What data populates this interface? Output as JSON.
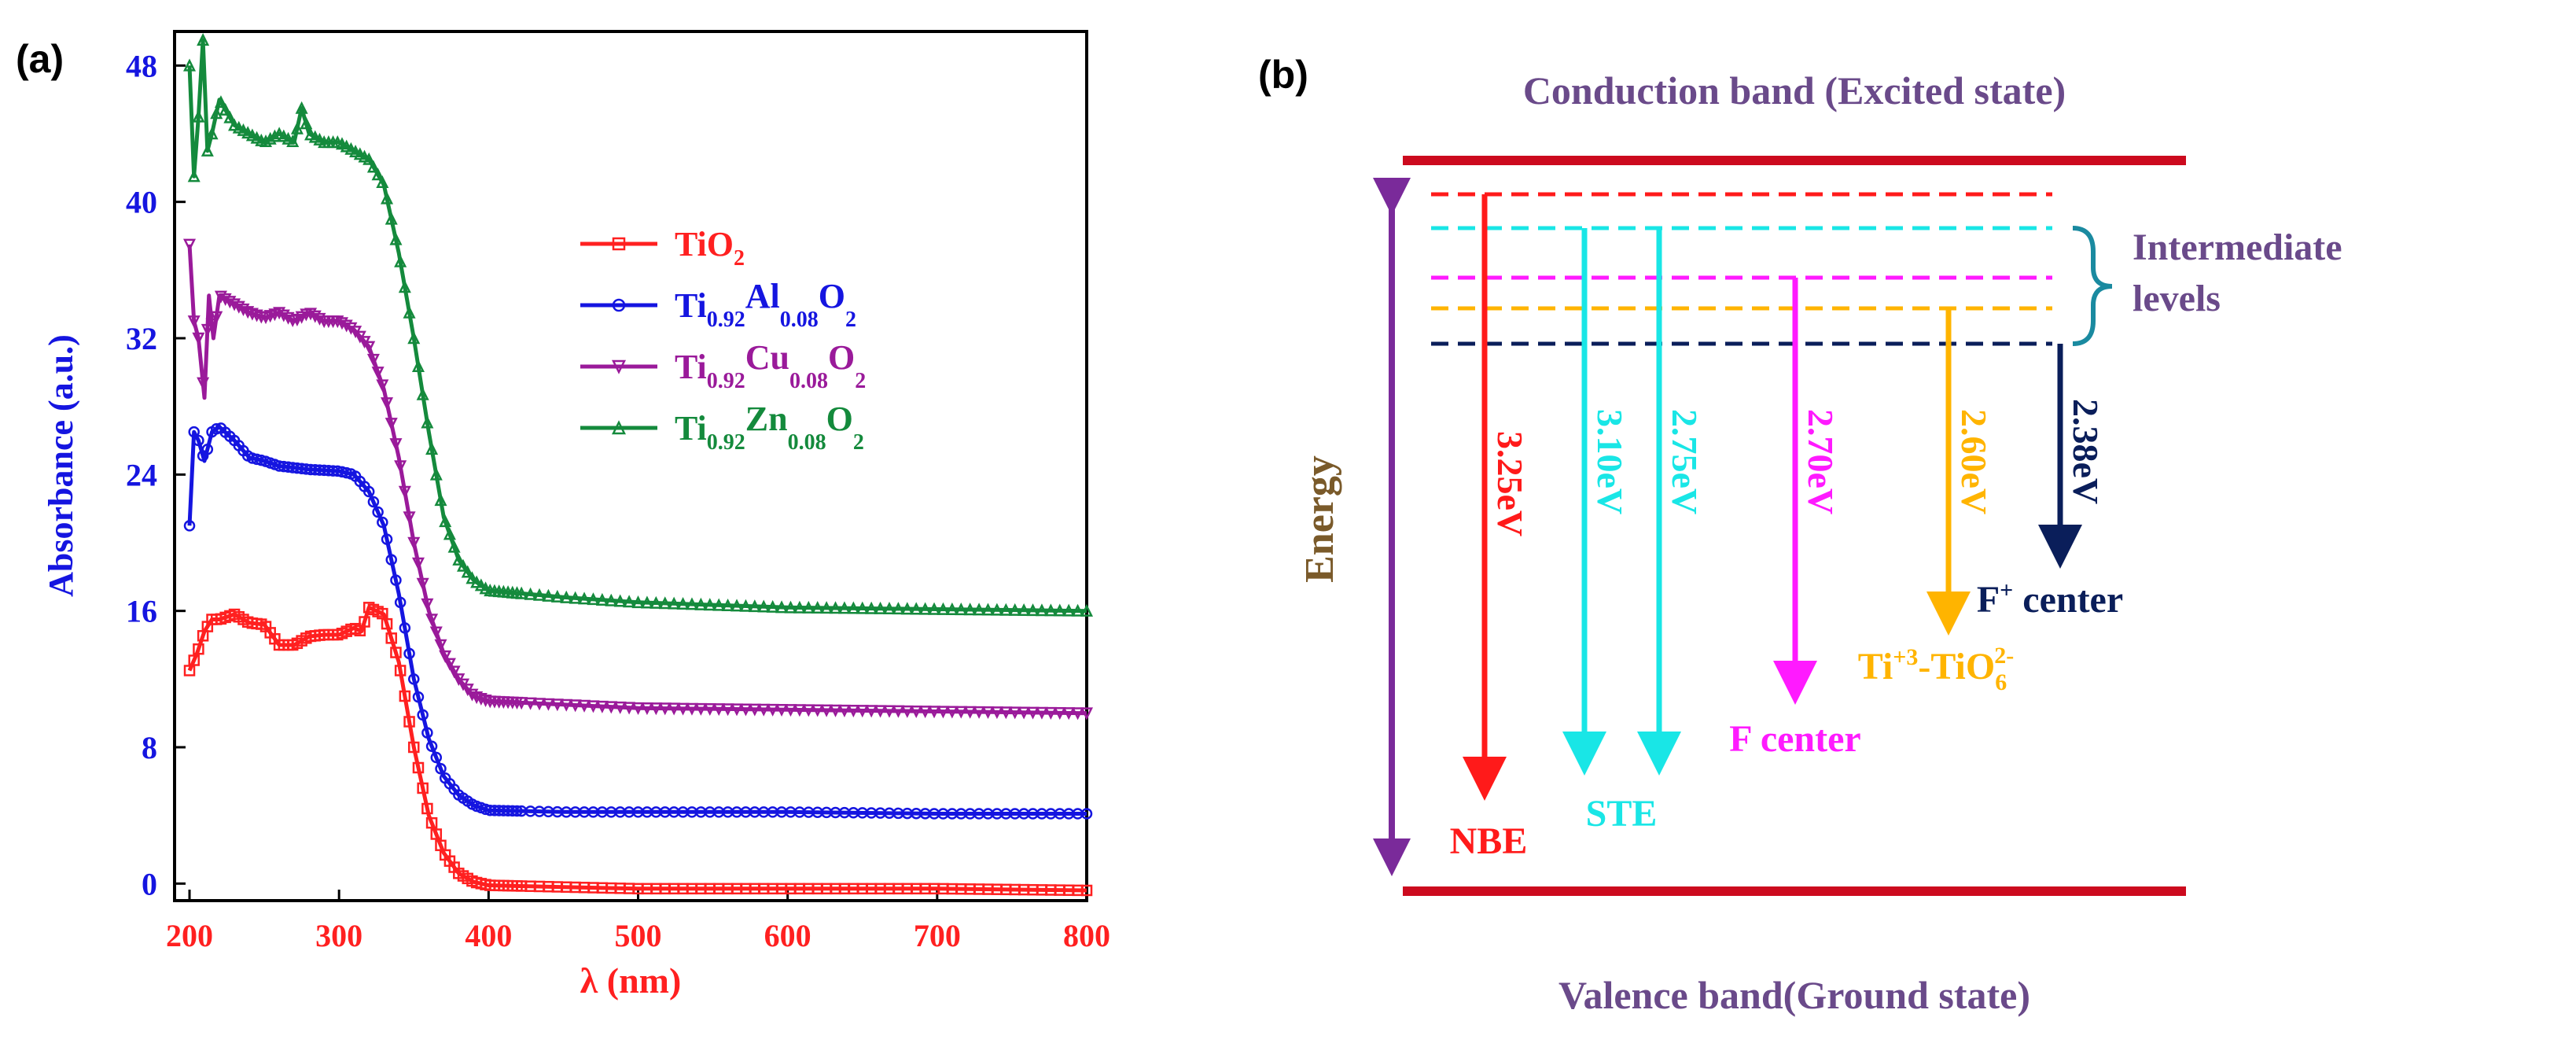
{
  "colors": {
    "tio2": "#ff2020",
    "al": "#1515e0",
    "cu": "#9a1a9a",
    "zn": "#148a3c",
    "axis_x_text": "#ff2020",
    "axis_y_text": "#1515e0",
    "band": "#cc0a1e",
    "energy_arrow": "#7a2a9a",
    "title_text": "#6a4a8a",
    "nbe": "#ff1a1a",
    "ste": "#19e6e6",
    "fcenter": "#ff1aff",
    "ti3": "#ffb400",
    "fplus": "#0a1e5a",
    "bracket": "#1a8aa0",
    "energy_label": "#7a5a2a"
  },
  "chart_data": [
    {
      "panel": "(a)",
      "type": "line",
      "xlabel_symbol": "λ",
      "xlabel_unit": " (nm)",
      "ylabel": "Absorbance (a.u.)",
      "xlim": [
        190,
        800
      ],
      "ylim": [
        -1,
        50
      ],
      "x_ticks": [
        200,
        300,
        400,
        500,
        600,
        700,
        800
      ],
      "y_ticks": [
        0,
        8,
        16,
        24,
        32,
        40,
        48
      ],
      "legend_position": "upper-right",
      "series": [
        {
          "name": "TiO2",
          "legend": {
            "base": "TiO",
            "sub1": "2",
            "mid": "",
            "sub2": "",
            "end": "",
            "sub3": ""
          },
          "color_key": "tio2",
          "marker": "square",
          "points": [
            [
              200,
              12.5
            ],
            [
              205,
              13.5
            ],
            [
              210,
              14.8
            ],
            [
              215,
              15.5
            ],
            [
              220,
              15.5
            ],
            [
              230,
              15.8
            ],
            [
              240,
              15.3
            ],
            [
              250,
              15.2
            ],
            [
              260,
              14.0
            ],
            [
              270,
              14.0
            ],
            [
              280,
              14.5
            ],
            [
              290,
              14.6
            ],
            [
              300,
              14.6
            ],
            [
              310,
              15.0
            ],
            [
              315,
              14.8
            ],
            [
              320,
              16.2
            ],
            [
              330,
              15.8
            ],
            [
              340,
              13.0
            ],
            [
              350,
              8.0
            ],
            [
              360,
              4.0
            ],
            [
              370,
              1.8
            ],
            [
              380,
              0.6
            ],
            [
              390,
              0.1
            ],
            [
              400,
              -0.1
            ],
            [
              450,
              -0.2
            ],
            [
              500,
              -0.3
            ],
            [
              600,
              -0.3
            ],
            [
              700,
              -0.3
            ],
            [
              800,
              -0.4
            ]
          ]
        },
        {
          "name": "Ti0.92Al0.08O2",
          "legend": {
            "base": "Ti",
            "sub1": "0.92",
            "mid": "Al",
            "sub2": "0.08",
            "end": "O",
            "sub3": "2"
          },
          "color_key": "al",
          "marker": "circle",
          "points": [
            [
              200,
              21.0
            ],
            [
              203,
              26.5
            ],
            [
              206,
              26.0
            ],
            [
              210,
              24.8
            ],
            [
              215,
              26.5
            ],
            [
              220,
              26.8
            ],
            [
              230,
              26.0
            ],
            [
              240,
              25.0
            ],
            [
              250,
              24.8
            ],
            [
              260,
              24.5
            ],
            [
              280,
              24.3
            ],
            [
              300,
              24.2
            ],
            [
              310,
              24.0
            ],
            [
              320,
              23.0
            ],
            [
              330,
              21.0
            ],
            [
              340,
              17.0
            ],
            [
              350,
              12.0
            ],
            [
              360,
              8.5
            ],
            [
              370,
              6.3
            ],
            [
              380,
              5.2
            ],
            [
              390,
              4.6
            ],
            [
              400,
              4.3
            ],
            [
              450,
              4.2
            ],
            [
              500,
              4.2
            ],
            [
              600,
              4.2
            ],
            [
              700,
              4.1
            ],
            [
              800,
              4.1
            ]
          ]
        },
        {
          "name": "Ti0.92Cu0.08O2",
          "legend": {
            "base": "Ti",
            "sub1": "0.92",
            "mid": "Cu",
            "sub2": "0.08",
            "end": "O",
            "sub3": "2"
          },
          "color_key": "cu",
          "marker": "triangle-down",
          "points": [
            [
              200,
              37.5
            ],
            [
              203,
              33.0
            ],
            [
              206,
              32.0
            ],
            [
              210,
              28.5
            ],
            [
              213,
              34.5
            ],
            [
              216,
              32.0
            ],
            [
              220,
              34.5
            ],
            [
              230,
              34.0
            ],
            [
              240,
              33.5
            ],
            [
              250,
              33.2
            ],
            [
              260,
              33.5
            ],
            [
              270,
              33.0
            ],
            [
              280,
              33.5
            ],
            [
              290,
              33.0
            ],
            [
              300,
              33.0
            ],
            [
              310,
              32.5
            ],
            [
              320,
              31.5
            ],
            [
              330,
              29.0
            ],
            [
              340,
              25.0
            ],
            [
              350,
              20.0
            ],
            [
              360,
              16.0
            ],
            [
              370,
              13.5
            ],
            [
              380,
              12.0
            ],
            [
              390,
              11.0
            ],
            [
              400,
              10.7
            ],
            [
              450,
              10.5
            ],
            [
              500,
              10.3
            ],
            [
              600,
              10.2
            ],
            [
              700,
              10.1
            ],
            [
              800,
              10.0
            ]
          ]
        },
        {
          "name": "Ti0.92Zn0.08O2",
          "legend": {
            "base": "Ti",
            "sub1": "0.92",
            "mid": "Zn",
            "sub2": "0.08",
            "end": "O",
            "sub3": "2"
          },
          "color_key": "zn",
          "marker": "triangle-up",
          "points": [
            [
              200,
              48.0
            ],
            [
              203,
              41.5
            ],
            [
              206,
              45.0
            ],
            [
              209,
              49.5
            ],
            [
              212,
              43.0
            ],
            [
              215,
              44.0
            ],
            [
              220,
              46.0
            ],
            [
              230,
              44.5
            ],
            [
              240,
              44.0
            ],
            [
              250,
              43.5
            ],
            [
              260,
              44.0
            ],
            [
              270,
              43.5
            ],
            [
              275,
              45.5
            ],
            [
              280,
              44.0
            ],
            [
              290,
              43.5
            ],
            [
              300,
              43.5
            ],
            [
              310,
              43.0
            ],
            [
              320,
              42.5
            ],
            [
              330,
              41.0
            ],
            [
              340,
              37.0
            ],
            [
              350,
              32.0
            ],
            [
              360,
              26.5
            ],
            [
              370,
              21.5
            ],
            [
              380,
              19.0
            ],
            [
              390,
              17.8
            ],
            [
              400,
              17.2
            ],
            [
              450,
              16.8
            ],
            [
              500,
              16.5
            ],
            [
              600,
              16.2
            ],
            [
              700,
              16.1
            ],
            [
              800,
              16.0
            ]
          ]
        }
      ]
    },
    {
      "panel": "(b)",
      "type": "diagram",
      "title_top": "Conduction band (Excited state)",
      "title_bottom": "Valence band(Ground state)",
      "axis_label": "Energy",
      "intermediate_label_line1": "Intermediate",
      "intermediate_label_line2": "levels",
      "transitions": [
        {
          "id": "nbe",
          "energy": "3.25eV",
          "label": "NBE",
          "color_key": "nbe",
          "level": 1,
          "end": "deep"
        },
        {
          "id": "ste1",
          "energy": "3.10eV",
          "label": "",
          "color_key": "ste",
          "level": 2,
          "end": "mid"
        },
        {
          "id": "ste2",
          "energy": "2.75eV",
          "label": "STE",
          "color_key": "ste",
          "level": 2,
          "end": "mid"
        },
        {
          "id": "fcenter",
          "energy": "2.70eV",
          "label": "F center",
          "color_key": "fcenter",
          "level": 3,
          "end": "upper"
        },
        {
          "id": "ti3",
          "energy": "2.60eV",
          "label": "",
          "color_key": "ti3",
          "level": 4,
          "end": "high"
        },
        {
          "id": "fplus",
          "energy": "2.38eV",
          "label": "",
          "color_key": "fplus",
          "level": 5,
          "end": "top"
        }
      ],
      "ti3_label": {
        "a": "Ti",
        "sup1": "+3",
        "b": "-TiO",
        "sub": "6",
        "sup2": "2-"
      },
      "fplus_label": {
        "a": "F",
        "sup": "+",
        "b": " center"
      }
    }
  ],
  "panel_labels": {
    "a": "(a)",
    "b": "(b)"
  }
}
